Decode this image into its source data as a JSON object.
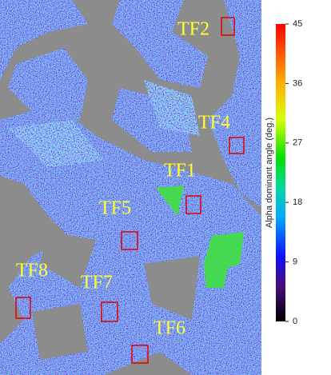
{
  "labels": [
    "TF2",
    "TF4",
    "TF1",
    "TF5",
    "TF8",
    "TF7",
    "TF6"
  ],
  "colorbar": {
    "title": "Alpha dominant angle (deg.)",
    "range": [
      0,
      45
    ],
    "ticks": [
      0,
      9,
      18,
      27,
      36,
      45
    ]
  }
}
